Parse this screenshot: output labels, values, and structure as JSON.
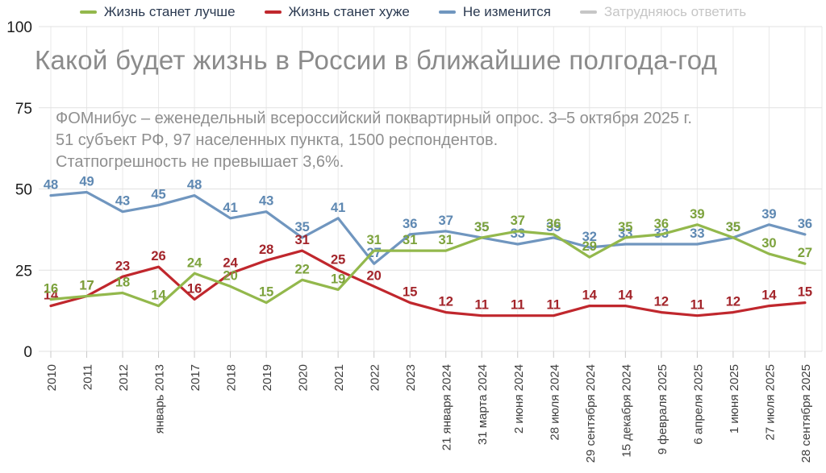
{
  "title": "Какой будет жизнь в России в ближайшие полгода-год",
  "subtitle_lines": [
    "ФОМнибус – еженедельный всероссийский поквартирный опрос. 3–5 октября 2025 г.",
    "51 субъект РФ, 97 населенных пункта, 1500 респондентов.",
    "Статпогрешность не превышает 3,6%."
  ],
  "chart_data": {
    "type": "line",
    "title": "Какой будет жизнь в России в ближайшие полгода-год",
    "categories": [
      "2010",
      "2011",
      "2012",
      "январь 2013",
      "2017",
      "2018",
      "2019",
      "2020",
      "2021",
      "2022",
      "2023",
      "21 января 2024",
      "31 марта 2024",
      "2 июня 2024",
      "28 июля 2024",
      "29 сентября 2024",
      "15 декабря 2024",
      "9 февраля 2025",
      "6 апреля 2025",
      "1 июня 2025",
      "27 июля 2025",
      "28 сентября 2025"
    ],
    "series": [
      {
        "name": "Жизнь станет лучше",
        "color": "#93b84c",
        "label_color": "#7ca23c",
        "z": 3,
        "visible": true,
        "values": [
          16,
          17,
          18,
          14,
          24,
          20,
          15,
          22,
          19,
          31,
          31,
          31,
          35,
          37,
          36,
          29,
          35,
          36,
          39,
          35,
          30,
          27
        ]
      },
      {
        "name": "Жизнь станет хуже",
        "color": "#c0272d",
        "label_color": "#a3242a",
        "z": 2,
        "visible": true,
        "values": [
          14,
          17,
          23,
          26,
          16,
          24,
          28,
          31,
          25,
          20,
          15,
          12,
          11,
          11,
          11,
          14,
          14,
          12,
          11,
          12,
          14,
          15
        ]
      },
      {
        "name": "Не изменится",
        "color": "#7096bf",
        "label_color": "#5e88b2",
        "z": 1,
        "visible": true,
        "values": [
          48,
          49,
          43,
          45,
          48,
          41,
          43,
          35,
          41,
          27,
          36,
          37,
          35,
          33,
          35,
          32,
          33,
          33,
          33,
          35,
          39,
          36
        ]
      },
      {
        "name": "Затрудняюсь ответить",
        "color": "#c6c6c6",
        "label_color": "#c6c6c6",
        "z": 0,
        "visible": false,
        "values": []
      }
    ],
    "ylim": [
      0,
      100
    ],
    "yticks": [
      0,
      25,
      50,
      75,
      100
    ],
    "grid": true,
    "legend_position": "top",
    "x_tick_rotation": -90
  }
}
